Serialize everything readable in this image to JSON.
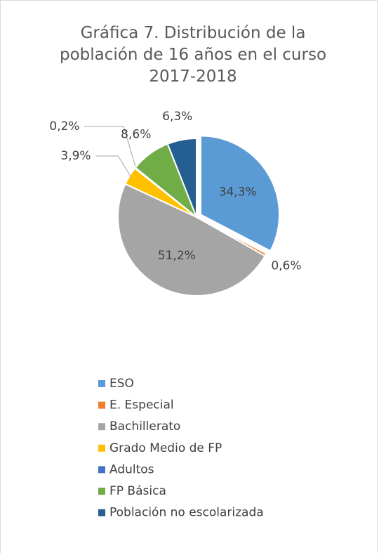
{
  "chart_data": {
    "type": "pie",
    "title": "Gráfica 7. Distribución de la población de 16 años en el curso 2017-2018",
    "categories": [
      "ESO",
      "E. Especial",
      "Bachillerato",
      "Grado Medio de FP",
      "Adultos",
      "FP Básica",
      "Población no escolarizada"
    ],
    "values": [
      34.3,
      0.6,
      51.2,
      3.9,
      0.2,
      8.6,
      6.3
    ],
    "value_labels": [
      "34,3%",
      "0,6%",
      "51,2%",
      "3,9%",
      "0,2%",
      "8,6%",
      "6,3%"
    ],
    "colors": [
      "#5b9bd5",
      "#ed7d31",
      "#a5a5a5",
      "#ffc000",
      "#4472c4",
      "#70ad47",
      "#255e91"
    ],
    "legend": "bottom"
  }
}
